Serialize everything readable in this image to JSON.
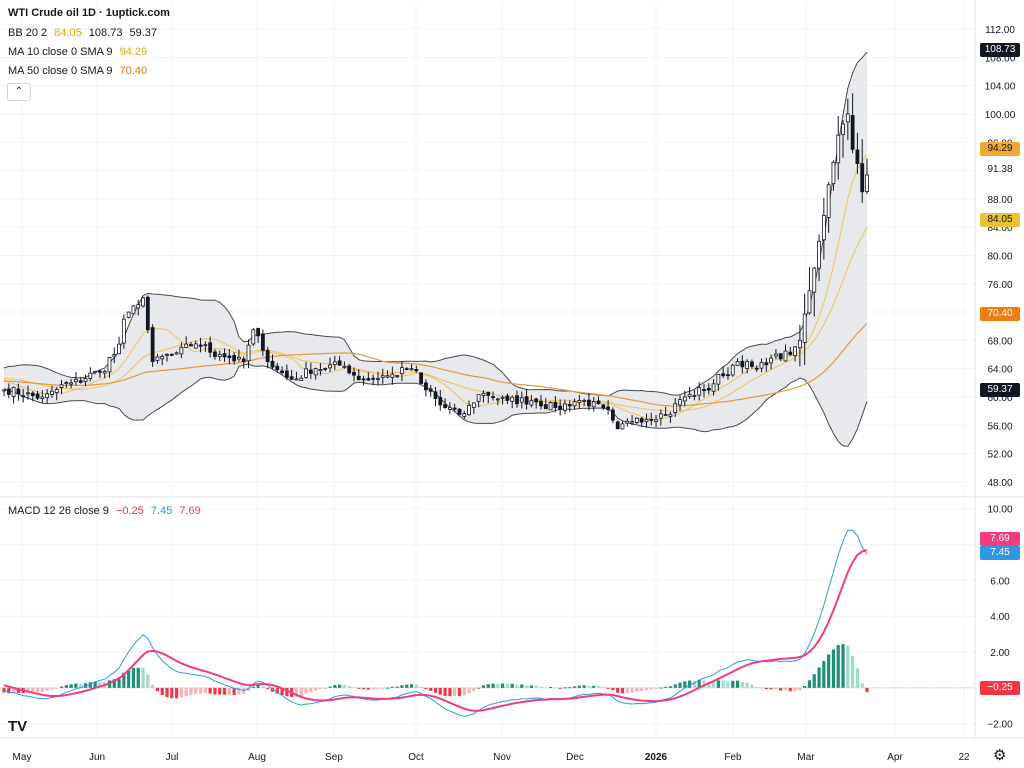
{
  "legend": {
    "title": "WTI Crude oil  1D · 1uptick.com",
    "bb": {
      "label": "BB 20 2",
      "basis": "84.05",
      "upper": "108.73",
      "lower": "59.37"
    },
    "ma10": {
      "label": "MA 10 close 0 SMA 9",
      "value": "94.29"
    },
    "ma50": {
      "label": "MA 50 close 0 SMA 9",
      "value": "70.40"
    },
    "macd": {
      "label": "MACD 12 26 close 9",
      "hist": "−0.25",
      "macd": "7.45",
      "signal": "7.69"
    }
  },
  "collapse_icon": "chevron-up-icon",
  "price_tags": {
    "upper": "108.73",
    "ma10": "94.29",
    "last": "91.38",
    "basis": "84.05",
    "ma50": "70.40",
    "lower": "59.37"
  },
  "macd_tags": {
    "signal": "7.69",
    "macd": "7.45",
    "hist": "−0.25"
  },
  "colors": {
    "up": "#ffffff",
    "down": "#131722",
    "bb_fill": "#e6e7ea",
    "bb_line": "#4a4a4a",
    "ma10": "#f0c25a",
    "ma50": "#e39a3f",
    "macd": "#2f97e6",
    "signal": "#f23b82",
    "hist_up_strong": "#1f8f77",
    "hist_up_weak": "#9fdccc",
    "hist_down_strong": "#f23645",
    "hist_down_weak": "#f7b3b7",
    "tag_dark": "#131722",
    "tag_ma10": "#f0a830",
    "tag_basis": "#e8c435",
    "tag_ma50": "#ef7d14",
    "tag_signal": "#f23b82",
    "tag_macd": "#2f97e6",
    "tag_hist": "#f23645"
  },
  "chart_data": [
    {
      "type": "candlestick",
      "title": "WTI Crude oil 1D",
      "x_ticks": [
        "May",
        "Jun",
        "Jul",
        "Aug",
        "Sep",
        "Oct",
        "Nov",
        "Dec",
        "2026",
        "Feb",
        "Mar",
        "Apr",
        "22"
      ],
      "y_ticks": [
        "112.00",
        "108.00",
        "104.00",
        "100.00",
        "96.00",
        "92.00",
        "88.00",
        "84.00",
        "80.00",
        "76.00",
        "72.00",
        "68.00",
        "64.00",
        "60.00",
        "56.00",
        "52.00",
        "48.00"
      ],
      "ylim": [
        46,
        113
      ],
      "grid": true,
      "anchors": [
        {
          "b": 0,
          "p": 61
        },
        {
          "b": 8,
          "p": 60
        },
        {
          "b": 14,
          "p": 62
        },
        {
          "b": 20,
          "p": 63.5
        },
        {
          "b": 23,
          "p": 66
        },
        {
          "b": 26,
          "p": 72
        },
        {
          "b": 29,
          "p": 74
        },
        {
          "b": 31,
          "p": 65
        },
        {
          "b": 35,
          "p": 66
        },
        {
          "b": 40,
          "p": 67.5
        },
        {
          "b": 45,
          "p": 66
        },
        {
          "b": 50,
          "p": 65
        },
        {
          "b": 52,
          "p": 69.5
        },
        {
          "b": 55,
          "p": 65
        },
        {
          "b": 60,
          "p": 62.5
        },
        {
          "b": 65,
          "p": 64
        },
        {
          "b": 70,
          "p": 64.5
        },
        {
          "b": 75,
          "p": 62.5
        },
        {
          "b": 80,
          "p": 63
        },
        {
          "b": 85,
          "p": 64
        },
        {
          "b": 88,
          "p": 61
        },
        {
          "b": 92,
          "p": 58.5
        },
        {
          "b": 95,
          "p": 57.5
        },
        {
          "b": 100,
          "p": 60.5
        },
        {
          "b": 105,
          "p": 59.5
        },
        {
          "b": 110,
          "p": 59.5
        },
        {
          "b": 115,
          "p": 58.5
        },
        {
          "b": 120,
          "p": 59.5
        },
        {
          "b": 125,
          "p": 58.5
        },
        {
          "b": 128,
          "p": 55.5
        },
        {
          "b": 132,
          "p": 57
        },
        {
          "b": 138,
          "p": 57.5
        },
        {
          "b": 142,
          "p": 60
        },
        {
          "b": 146,
          "p": 61
        },
        {
          "b": 150,
          "p": 63
        },
        {
          "b": 153,
          "p": 65
        },
        {
          "b": 157,
          "p": 64
        },
        {
          "b": 160,
          "p": 65.5
        },
        {
          "b": 164,
          "p": 66
        },
        {
          "b": 166,
          "p": 68
        },
        {
          "b": 168,
          "p": 75
        },
        {
          "b": 170,
          "p": 82
        },
        {
          "b": 172,
          "p": 90
        },
        {
          "b": 174,
          "p": 97
        },
        {
          "b": 176,
          "p": 100
        },
        {
          "b": 177,
          "p": 95
        },
        {
          "b": 178,
          "p": 93
        },
        {
          "b": 179,
          "p": 89
        },
        {
          "b": 180,
          "p": 91.38
        }
      ],
      "bollinger": {
        "period": 20,
        "mult": 2,
        "basis_last": 84.05,
        "upper_last": 108.73,
        "lower_last": 59.37
      },
      "ma10_last": 94.29,
      "ma50_last": 70.4,
      "last_price": 91.38
    },
    {
      "type": "line",
      "title": "MACD 12 26 close 9",
      "y_ticks": [
        "10.00",
        "8.00",
        "6.00",
        "4.00",
        "2.00",
        "0.00",
        "−2.00"
      ],
      "ylim": [
        -2.8,
        10.6
      ],
      "series": [
        {
          "name": "MACD",
          "last": 7.45
        },
        {
          "name": "Signal",
          "last": 7.69
        },
        {
          "name": "Histogram",
          "last": -0.25
        }
      ]
    }
  ]
}
